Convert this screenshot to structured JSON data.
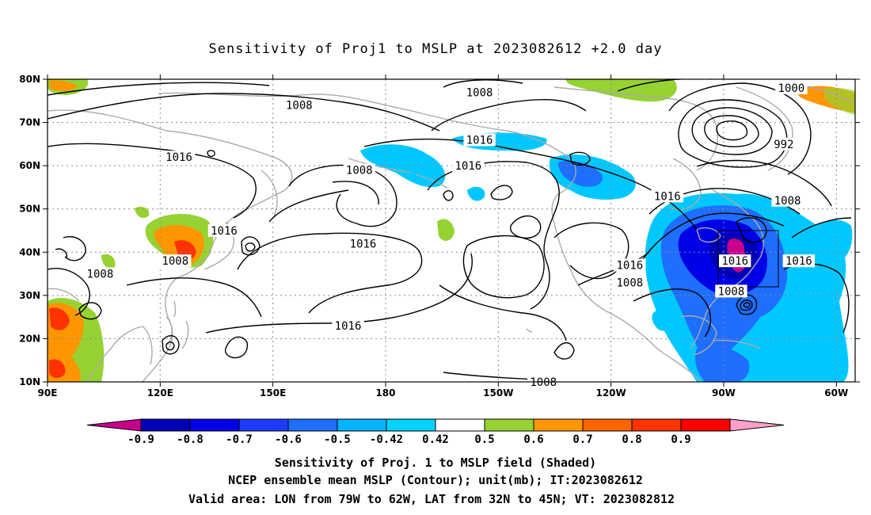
{
  "title": "Sensitivity of Proj1 to MSLP at 2023082612 +2.0 day",
  "map": {
    "lon_range": [
      90,
      305
    ],
    "lat_range": [
      10,
      80
    ],
    "lat_ticks": [
      "80N",
      "70N",
      "60N",
      "50N",
      "40N",
      "30N",
      "20N",
      "10N"
    ],
    "lon_ticks": [
      "90E",
      "120E",
      "150E",
      "180",
      "150W",
      "120W",
      "90W",
      "60W"
    ],
    "valid_area_box": {
      "lon": [
        281,
        298
      ],
      "lat": [
        32,
        45
      ]
    },
    "contour_interval_mb": 4
  },
  "isobar_labels": [
    {
      "text": "1008",
      "lon": 157,
      "lat": 74
    },
    {
      "text": "1016",
      "lon": 125,
      "lat": 62
    },
    {
      "text": "1016",
      "lon": 137,
      "lat": 45
    },
    {
      "text": "1008",
      "lon": 124,
      "lat": 38
    },
    {
      "text": "1008",
      "lon": 104,
      "lat": 35
    },
    {
      "text": "1008",
      "lon": 173,
      "lat": 59
    },
    {
      "text": "1016",
      "lon": 174,
      "lat": 42
    },
    {
      "text": "1016",
      "lon": 170,
      "lat": 23
    },
    {
      "text": "1008",
      "lon": 205,
      "lat": 77
    },
    {
      "text": "1016",
      "lon": 205,
      "lat": 66
    },
    {
      "text": "1016",
      "lon": 202,
      "lat": 60
    },
    {
      "text": "1016",
      "lon": 255,
      "lat": 53
    },
    {
      "text": "1016",
      "lon": 245,
      "lat": 37
    },
    {
      "text": "1008",
      "lon": 245,
      "lat": 33
    },
    {
      "text": "1016",
      "lon": 273,
      "lat": 38
    },
    {
      "text": "1008",
      "lon": 287,
      "lat": 52
    },
    {
      "text": "1016",
      "lon": 290,
      "lat": 38
    },
    {
      "text": "1008",
      "lon": 272,
      "lat": 31
    },
    {
      "text": "1000",
      "lon": 288,
      "lat": 78
    },
    {
      "text": "992",
      "lon": 286,
      "lat": 65
    },
    {
      "text": "1008",
      "lon": 222,
      "lat": 10
    }
  ],
  "colorbar": {
    "labels": [
      "-0.9",
      "-0.8",
      "-0.7",
      "-0.6",
      "-0.5",
      "-0.42",
      "0.42",
      "0.5",
      "0.6",
      "0.7",
      "0.8",
      "0.9"
    ],
    "colors": [
      "#c8008c",
      "#0000b4",
      "#0000e6",
      "#1e3cff",
      "#1e6eff",
      "#00b4ff",
      "#00d2ff",
      "#ffffff",
      "#96d232",
      "#ff9600",
      "#ff6400",
      "#ff3200",
      "#ff0000",
      "#ffa0c8"
    ]
  },
  "captions": [
    "Sensitivity of Proj. 1 to MSLP field (Shaded)",
    "NCEP ensemble mean MSLP (Contour); unit(mb); IT:2023082612",
    "Valid area: LON from 79W to 62W, LAT from 32N to 45N; VT: 2023082812"
  ],
  "colors": {
    "isobar": "#000000",
    "coast": "#aaaaaa",
    "grid": "#888888"
  }
}
